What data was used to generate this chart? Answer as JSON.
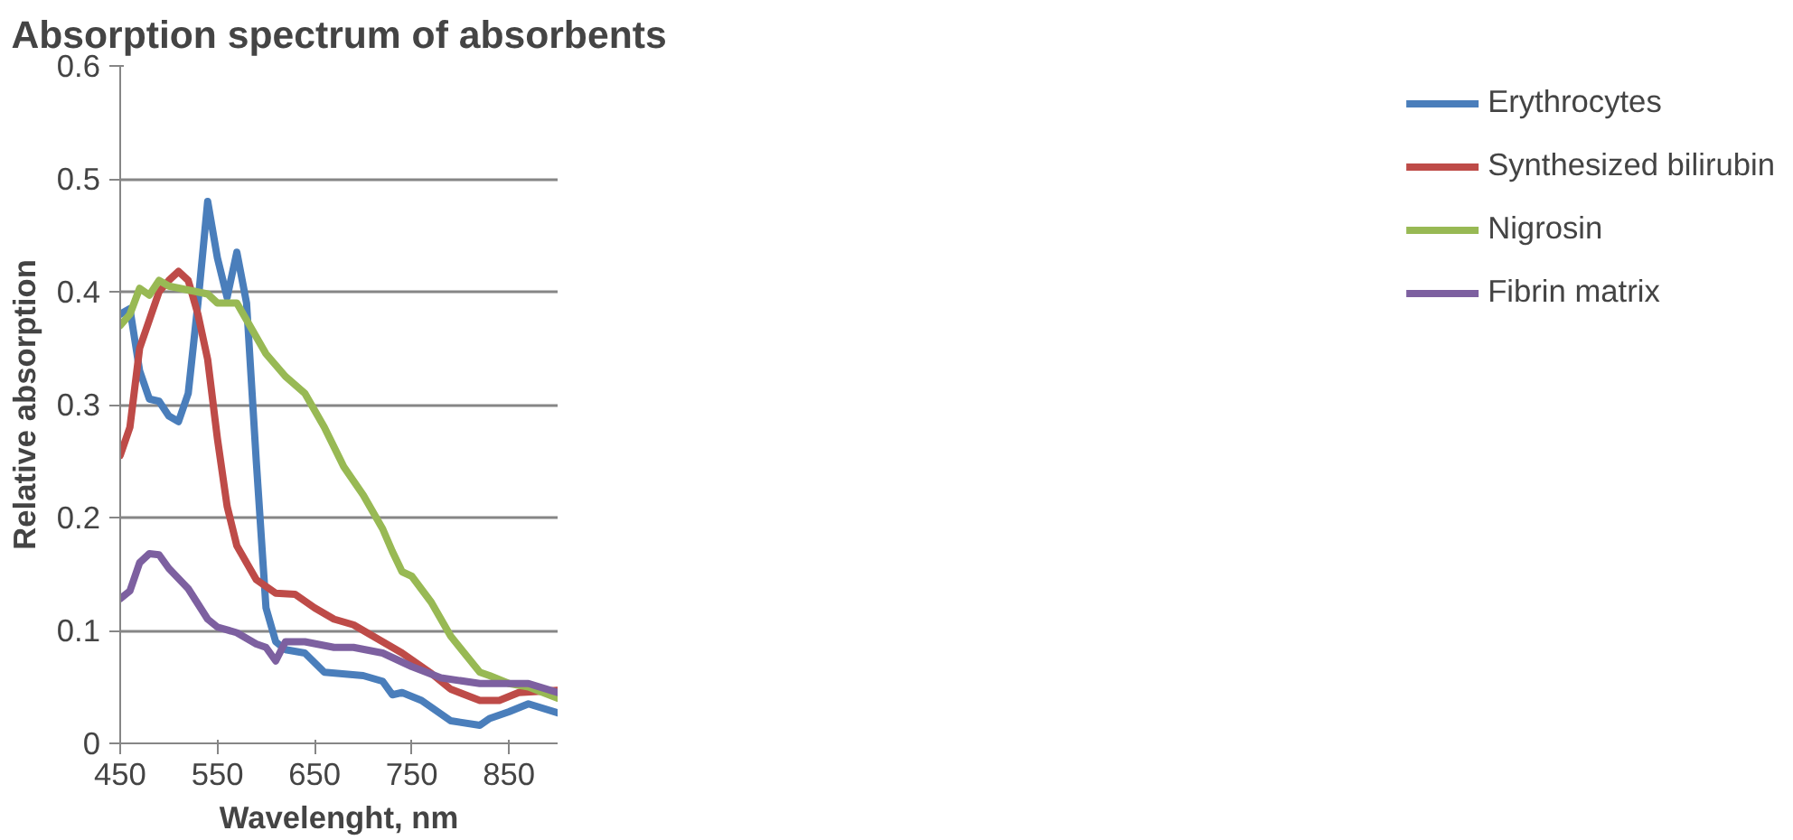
{
  "chart_data": {
    "type": "line",
    "title": "Absorption spectrum of absorbents",
    "xlabel": "Wavelenght, nm",
    "ylabel": "Relative absorption",
    "xlim": [
      450,
      900
    ],
    "xticks": [
      450,
      550,
      650,
      750,
      850
    ],
    "ylim": [
      0,
      0.6
    ],
    "yticks": [
      0,
      0.1,
      0.2,
      0.3,
      0.4,
      0.5,
      0.6
    ],
    "grid": "y",
    "legend": "right",
    "line_style": "solid",
    "marker": "none",
    "series": [
      {
        "name": "Erythrocytes",
        "color": "#4a7ebb",
        "x": [
          450,
          460,
          470,
          480,
          490,
          500,
          510,
          520,
          530,
          540,
          550,
          560,
          570,
          580,
          590,
          600,
          610,
          620,
          640,
          660,
          700,
          720,
          730,
          740,
          760,
          790,
          820,
          830,
          850,
          870,
          900
        ],
        "values": [
          0.38,
          0.385,
          0.33,
          0.305,
          0.303,
          0.29,
          0.285,
          0.31,
          0.39,
          0.48,
          0.43,
          0.395,
          0.435,
          0.39,
          0.25,
          0.12,
          0.09,
          0.083,
          0.08,
          0.063,
          0.06,
          0.055,
          0.043,
          0.045,
          0.038,
          0.02,
          0.016,
          0.022,
          0.028,
          0.035,
          0.027
        ]
      },
      {
        "name": "Synthesized bilirubin",
        "color": "#be4b48",
        "x": [
          450,
          460,
          470,
          480,
          490,
          500,
          510,
          520,
          530,
          540,
          550,
          560,
          570,
          590,
          610,
          630,
          650,
          670,
          690,
          710,
          740,
          770,
          790,
          820,
          840,
          860,
          900
        ],
        "values": [
          0.255,
          0.28,
          0.35,
          0.375,
          0.4,
          0.41,
          0.418,
          0.41,
          0.38,
          0.34,
          0.27,
          0.21,
          0.175,
          0.145,
          0.133,
          0.132,
          0.12,
          0.11,
          0.105,
          0.095,
          0.08,
          0.062,
          0.048,
          0.038,
          0.038,
          0.045,
          0.047
        ]
      },
      {
        "name": "Nigrosin",
        "color": "#98b954",
        "x": [
          450,
          460,
          470,
          480,
          490,
          500,
          540,
          550,
          570,
          580,
          600,
          620,
          640,
          660,
          680,
          700,
          720,
          730,
          740,
          750,
          770,
          790,
          820,
          830,
          850,
          870,
          900
        ],
        "values": [
          0.37,
          0.38,
          0.403,
          0.397,
          0.41,
          0.405,
          0.398,
          0.39,
          0.39,
          0.375,
          0.345,
          0.325,
          0.31,
          0.28,
          0.245,
          0.22,
          0.19,
          0.17,
          0.152,
          0.148,
          0.125,
          0.095,
          0.063,
          0.06,
          0.053,
          0.05,
          0.04
        ]
      },
      {
        "name": "Fibrin matrix",
        "color": "#7d60a0",
        "x": [
          450,
          460,
          470,
          480,
          490,
          500,
          520,
          540,
          550,
          570,
          590,
          600,
          610,
          620,
          640,
          670,
          690,
          720,
          750,
          780,
          820,
          850,
          870,
          900
        ],
        "values": [
          0.128,
          0.135,
          0.16,
          0.168,
          0.167,
          0.155,
          0.137,
          0.11,
          0.103,
          0.098,
          0.088,
          0.085,
          0.073,
          0.09,
          0.09,
          0.085,
          0.085,
          0.08,
          0.068,
          0.058,
          0.053,
          0.053,
          0.053,
          0.045
        ]
      }
    ]
  }
}
